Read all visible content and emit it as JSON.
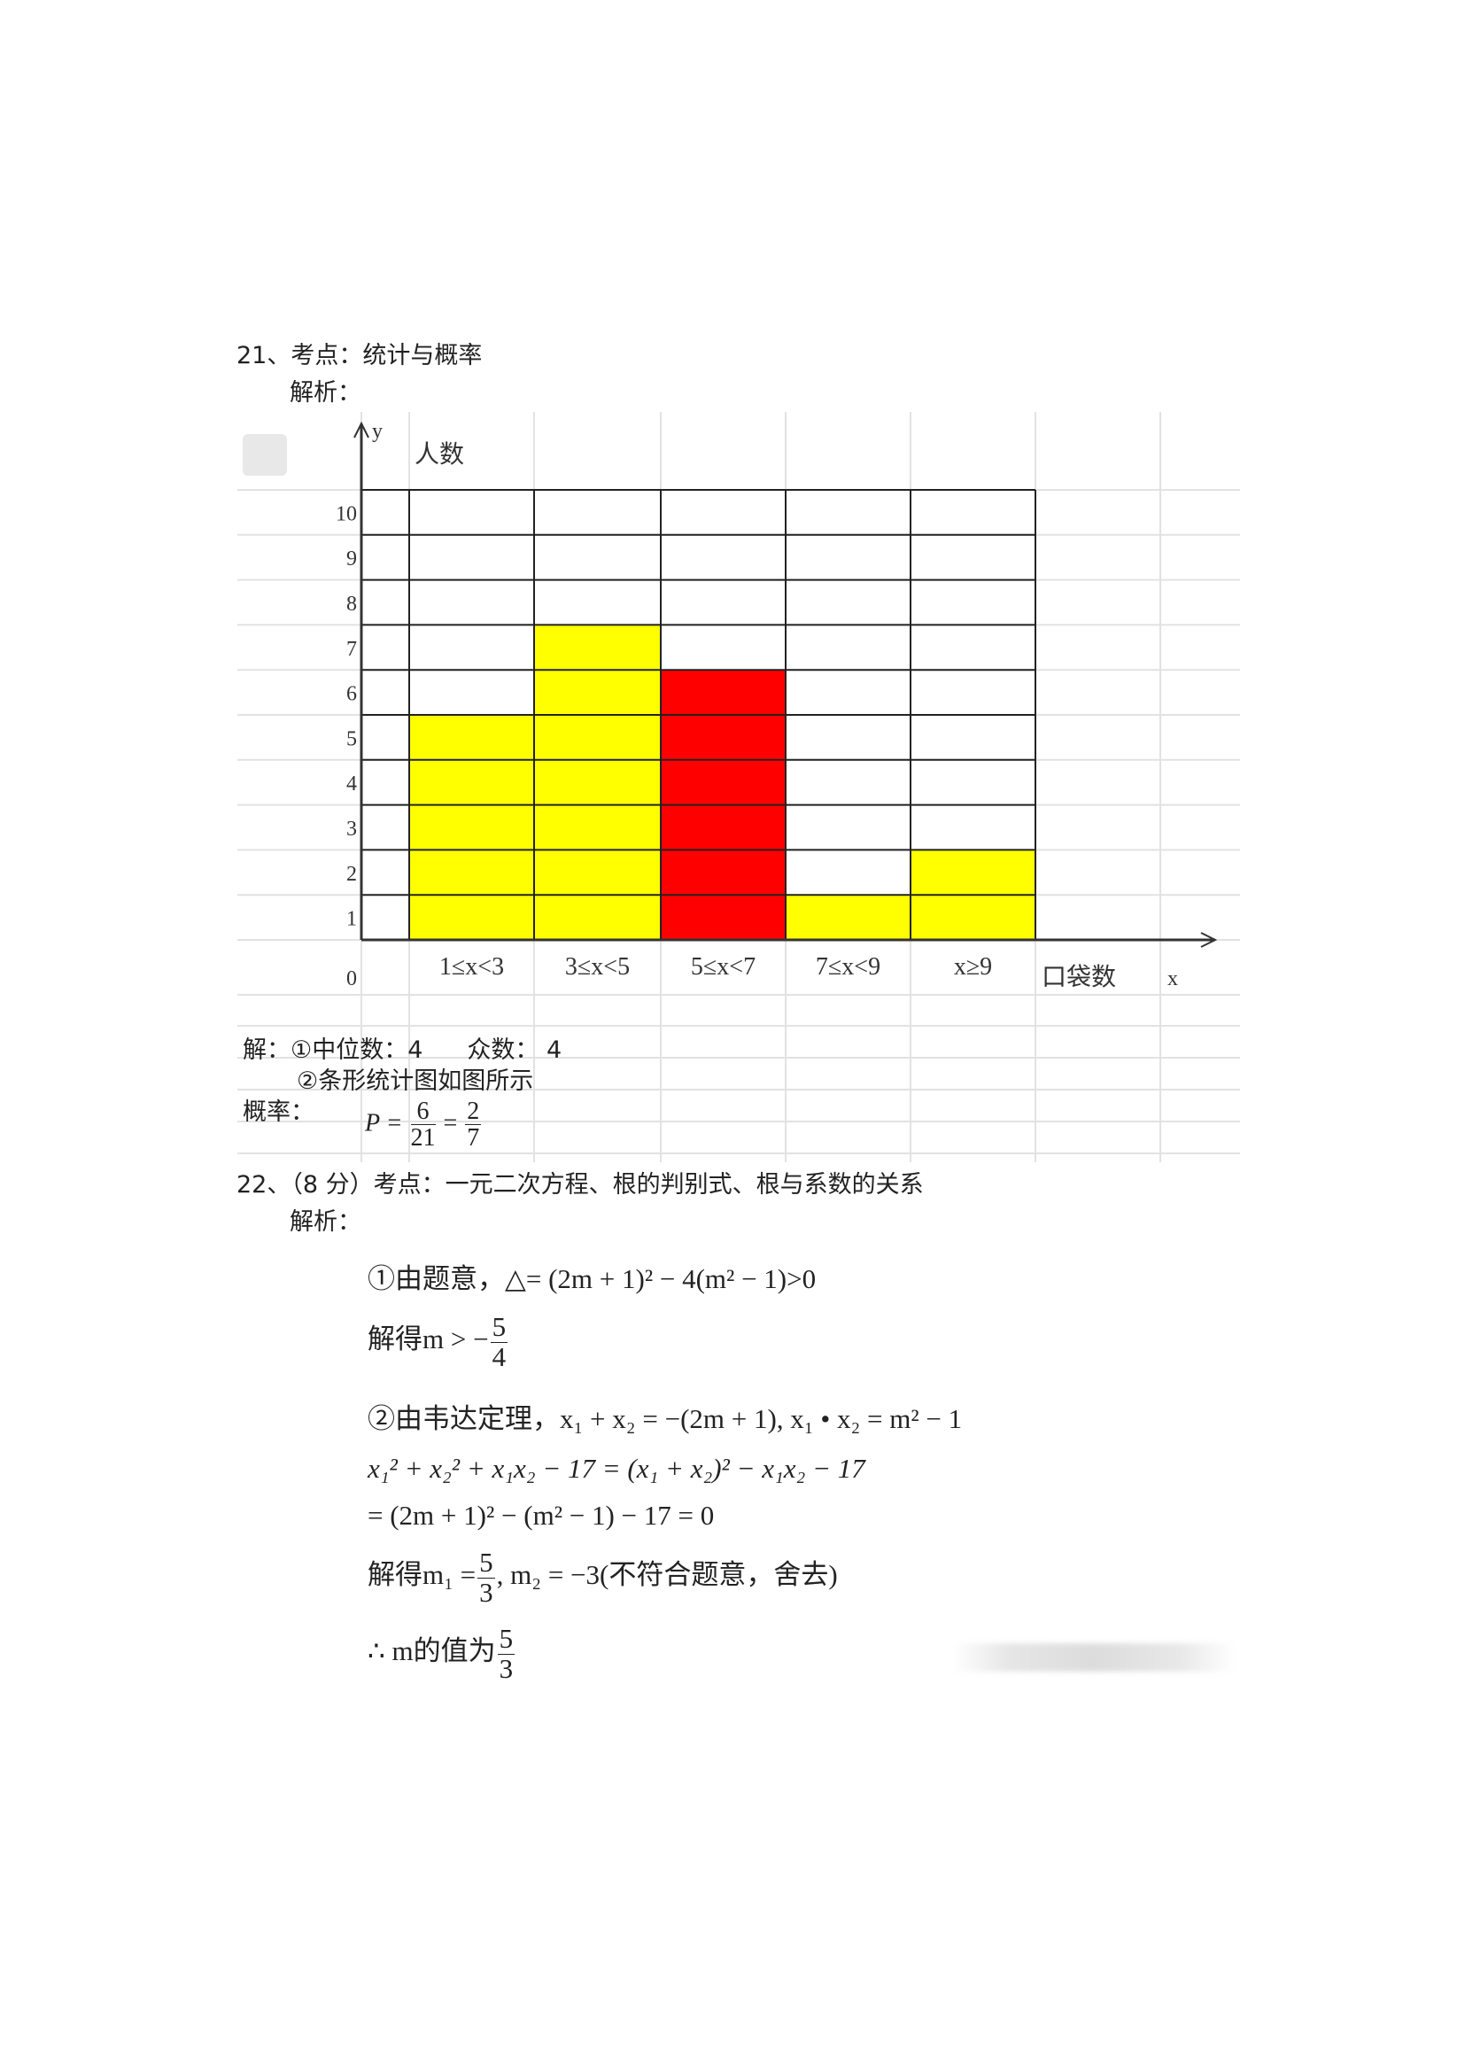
{
  "q21": {
    "heading": "21、考点：统计与概率",
    "analysis_label": "解析：",
    "answer_line1": "解：①中位数：4",
    "mode_text": "众数：  4",
    "answer_line2": "②条形统计图如图所示",
    "prob_label": "概率：",
    "prob_formula": {
      "lhs": "P =",
      "num1": "6",
      "den1": "21",
      "eq": "=",
      "num2": "2",
      "den2": "7"
    }
  },
  "chart_data": {
    "type": "bar",
    "categories": [
      "1≤x<3",
      "3≤x<5",
      "5≤x<7",
      "7≤x<9",
      "x≥9"
    ],
    "values": [
      5,
      7,
      6,
      1,
      2
    ],
    "bar_colors": [
      "#ffff00",
      "#ffff00",
      "#ff0000",
      "#ffff00",
      "#ffff00"
    ],
    "ylabel": "人数",
    "xlabel": "口袋数",
    "y_axis_letter": "y",
    "x_axis_letter": "x",
    "ylim": [
      0,
      10
    ],
    "yticks": [
      "0",
      "1",
      "2",
      "3",
      "4",
      "5",
      "6",
      "7",
      "8",
      "9",
      "10"
    ],
    "grid": true
  },
  "q22": {
    "heading": "22、（8 分）考点：一元二次方程、根的判别式、根与系数的关系",
    "analysis_label": "解析：",
    "step1": "①由题意，△= (2m + 1)² − 4(m² − 1)>0",
    "step1_result_prefix": "解得m > −",
    "step1_result_num": "5",
    "step1_result_den": "4",
    "step2": "②由韦达定理，x₁ + x₂ = −(2m + 1), x₁ • x₂ = m² − 1",
    "step2_line2": "x₁² + x₂² + x₁x₂ − 17 = (x₁ + x₂)² − x₁x₂ − 17",
    "step2_line3": "= (2m + 1)² − (m² − 1) − 17 = 0",
    "step2_result_prefix": "解得m₁ =",
    "step2_result_num": "5",
    "step2_result_den": "3",
    "step2_result_suffix": ", m₂ = −3(不符合题意，舍去)",
    "conclusion_prefix": "∴ m的值为",
    "conclusion_num": "5",
    "conclusion_den": "3"
  }
}
